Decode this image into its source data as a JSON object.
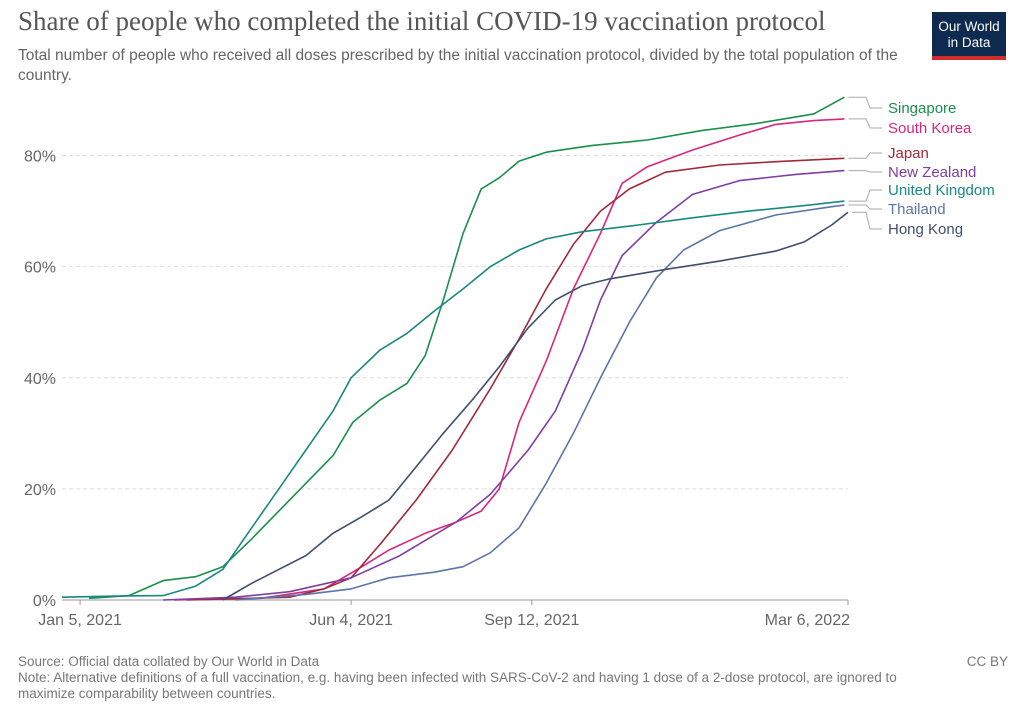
{
  "header": {
    "title": "Share of people who completed the initial COVID-19 vaccination protocol",
    "subtitle": "Total number of people who received all doses prescribed by the initial vaccination protocol, divided by the total population of the country.",
    "logo_line1": "Our World",
    "logo_line2": "in Data"
  },
  "footer": {
    "source": "Source: Official data collated by Our World in Data",
    "note": "Note: Alternative definitions of a full vaccination, e.g. having been infected with SARS-CoV-2 and having 1 dose of a 2-dose protocol, are ignored to maximize comparability between countries.",
    "license": "CC BY"
  },
  "chart_data": {
    "type": "line",
    "title": "Share of people who completed the initial COVID-19 vaccination protocol",
    "x_type": "date",
    "x_ticks": [
      "2021-01-05",
      "2021-06-04",
      "2021-09-12",
      "2022-03-06"
    ],
    "x_tick_labels": [
      "Jan 5, 2021",
      "Jun 4, 2021",
      "Sep 12, 2021",
      "Mar 6, 2022"
    ],
    "xlim": [
      "2020-12-26",
      "2022-03-06"
    ],
    "y_ticks": [
      0,
      20,
      40,
      60,
      80
    ],
    "y_tick_labels": [
      "0%",
      "20%",
      "40%",
      "60%",
      "80%"
    ],
    "ylim": [
      0,
      90
    ],
    "y_unit": "%",
    "grid": "horizontal-dashed",
    "legend": "right-end-labels",
    "series": [
      {
        "name": "Singapore",
        "color": "#1a8f4c",
        "points": [
          [
            "2021-01-10",
            0.3
          ],
          [
            "2021-02-01",
            0.8
          ],
          [
            "2021-02-20",
            3.5
          ],
          [
            "2021-03-10",
            4.2
          ],
          [
            "2021-03-25",
            6
          ],
          [
            "2021-04-10",
            11
          ],
          [
            "2021-04-25",
            16
          ],
          [
            "2021-05-10",
            21
          ],
          [
            "2021-05-25",
            26
          ],
          [
            "2021-06-05",
            32
          ],
          [
            "2021-06-20",
            36
          ],
          [
            "2021-07-05",
            39
          ],
          [
            "2021-07-15",
            44
          ],
          [
            "2021-07-25",
            54
          ],
          [
            "2021-08-05",
            66
          ],
          [
            "2021-08-15",
            74
          ],
          [
            "2021-08-25",
            76
          ],
          [
            "2021-09-05",
            79
          ],
          [
            "2021-09-20",
            80.6
          ],
          [
            "2021-10-15",
            81.8
          ],
          [
            "2021-11-15",
            82.8
          ],
          [
            "2021-12-15",
            84.5
          ],
          [
            "2022-01-15",
            85.8
          ],
          [
            "2022-02-15",
            87.5
          ],
          [
            "2022-03-04",
            90.5
          ]
        ]
      },
      {
        "name": "South Korea",
        "color": "#d8267d",
        "points": [
          [
            "2021-02-26",
            0
          ],
          [
            "2021-04-15",
            0.3
          ],
          [
            "2021-05-20",
            2
          ],
          [
            "2021-06-10",
            6
          ],
          [
            "2021-06-25",
            9
          ],
          [
            "2021-07-15",
            12
          ],
          [
            "2021-08-01",
            14
          ],
          [
            "2021-08-15",
            16
          ],
          [
            "2021-08-25",
            20
          ],
          [
            "2021-09-05",
            32
          ],
          [
            "2021-09-20",
            43
          ],
          [
            "2021-10-05",
            56
          ],
          [
            "2021-10-20",
            66
          ],
          [
            "2021-10-28",
            72
          ],
          [
            "2021-11-01",
            75
          ],
          [
            "2021-11-15",
            78
          ],
          [
            "2021-12-10",
            81
          ],
          [
            "2022-01-05",
            83.7
          ],
          [
            "2022-01-25",
            85.6
          ],
          [
            "2022-02-15",
            86.3
          ],
          [
            "2022-03-04",
            86.6
          ]
        ]
      },
      {
        "name": "Japan",
        "color": "#a02a3a",
        "points": [
          [
            "2021-03-05",
            0
          ],
          [
            "2021-05-01",
            0.5
          ],
          [
            "2021-05-20",
            2
          ],
          [
            "2021-06-04",
            4
          ],
          [
            "2021-06-20",
            10
          ],
          [
            "2021-07-10",
            18
          ],
          [
            "2021-07-30",
            27
          ],
          [
            "2021-08-20",
            38
          ],
          [
            "2021-09-05",
            47
          ],
          [
            "2021-09-20",
            56
          ],
          [
            "2021-10-05",
            64
          ],
          [
            "2021-10-20",
            70
          ],
          [
            "2021-11-05",
            74
          ],
          [
            "2021-11-25",
            77
          ],
          [
            "2021-12-25",
            78.3
          ],
          [
            "2022-01-25",
            78.9
          ],
          [
            "2022-03-04",
            79.5
          ]
        ]
      },
      {
        "name": "New Zealand",
        "color": "#7e3ea3",
        "points": [
          [
            "2021-02-20",
            0
          ],
          [
            "2021-04-01",
            0.5
          ],
          [
            "2021-05-01",
            1.5
          ],
          [
            "2021-06-04",
            4
          ],
          [
            "2021-07-01",
            8
          ],
          [
            "2021-08-01",
            14
          ],
          [
            "2021-08-20",
            19
          ],
          [
            "2021-09-10",
            27
          ],
          [
            "2021-09-25",
            34
          ],
          [
            "2021-10-10",
            45
          ],
          [
            "2021-10-20",
            54
          ],
          [
            "2021-11-01",
            62
          ],
          [
            "2021-11-20",
            68
          ],
          [
            "2021-12-10",
            73
          ],
          [
            "2022-01-05",
            75.5
          ],
          [
            "2022-02-05",
            76.6
          ],
          [
            "2022-03-04",
            77.3
          ]
        ]
      },
      {
        "name": "United Kingdom",
        "color": "#17897f",
        "points": [
          [
            "2020-12-26",
            0.5
          ],
          [
            "2021-01-25",
            0.7
          ],
          [
            "2021-02-20",
            0.8
          ],
          [
            "2021-03-10",
            2.5
          ],
          [
            "2021-03-25",
            5.5
          ],
          [
            "2021-04-10",
            13
          ],
          [
            "2021-04-25",
            20
          ],
          [
            "2021-05-10",
            27
          ],
          [
            "2021-05-25",
            34
          ],
          [
            "2021-06-04",
            40
          ],
          [
            "2021-06-20",
            45
          ],
          [
            "2021-07-05",
            48
          ],
          [
            "2021-07-20",
            52
          ],
          [
            "2021-08-05",
            56
          ],
          [
            "2021-08-20",
            60
          ],
          [
            "2021-09-05",
            63
          ],
          [
            "2021-09-20",
            65
          ],
          [
            "2021-10-10",
            66.3
          ],
          [
            "2021-11-10",
            67.5
          ],
          [
            "2021-12-10",
            68.8
          ],
          [
            "2022-01-10",
            70
          ],
          [
            "2022-02-10",
            71
          ],
          [
            "2022-03-04",
            71.8
          ]
        ]
      },
      {
        "name": "Thailand",
        "color": "#5b75a8",
        "points": [
          [
            "2021-04-01",
            0
          ],
          [
            "2021-05-10",
            1
          ],
          [
            "2021-06-04",
            2
          ],
          [
            "2021-06-25",
            4
          ],
          [
            "2021-07-20",
            5
          ],
          [
            "2021-08-05",
            6
          ],
          [
            "2021-08-20",
            8.5
          ],
          [
            "2021-09-05",
            13
          ],
          [
            "2021-09-20",
            21
          ],
          [
            "2021-10-05",
            30
          ],
          [
            "2021-10-20",
            40
          ],
          [
            "2021-11-05",
            50
          ],
          [
            "2021-11-20",
            58
          ],
          [
            "2021-12-05",
            63
          ],
          [
            "2021-12-25",
            66.5
          ],
          [
            "2022-01-25",
            69.3
          ],
          [
            "2022-02-25",
            70.8
          ],
          [
            "2022-03-04",
            71.1
          ]
        ]
      },
      {
        "name": "Hong Kong",
        "color": "#3f4f6b",
        "points": [
          [
            "2021-03-25",
            0
          ],
          [
            "2021-04-10",
            3
          ],
          [
            "2021-04-25",
            5.5
          ],
          [
            "2021-05-10",
            8
          ],
          [
            "2021-05-25",
            12
          ],
          [
            "2021-06-10",
            15
          ],
          [
            "2021-06-25",
            18
          ],
          [
            "2021-07-10",
            24
          ],
          [
            "2021-07-25",
            30
          ],
          [
            "2021-08-10",
            36
          ],
          [
            "2021-08-25",
            42
          ],
          [
            "2021-09-10",
            49
          ],
          [
            "2021-09-25",
            54
          ],
          [
            "2021-10-10",
            56.6
          ],
          [
            "2021-10-25",
            57.8
          ],
          [
            "2021-11-25",
            59.5
          ],
          [
            "2021-12-25",
            61
          ],
          [
            "2022-01-25",
            62.8
          ],
          [
            "2022-02-10",
            64.5
          ],
          [
            "2022-02-25",
            67.5
          ],
          [
            "2022-03-06",
            69.8
          ]
        ]
      }
    ]
  }
}
